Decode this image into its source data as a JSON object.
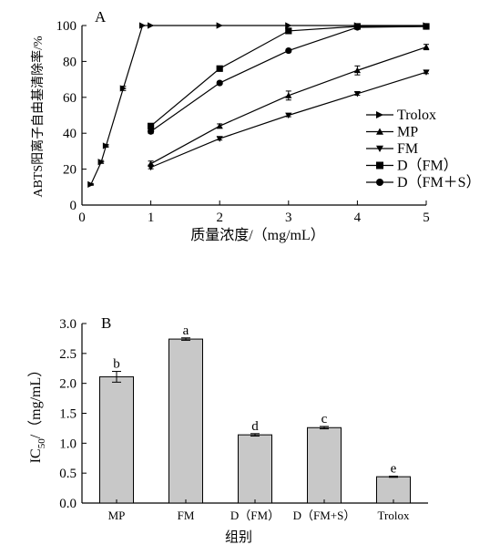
{
  "chart_data": [
    {
      "panel_label": "A",
      "type": "line",
      "xlabel": "质量浓度/（mg/mL）",
      "ylabel": "ABTS阳离子自由基清除率/%",
      "xlim": [
        0,
        5
      ],
      "ylim": [
        0,
        100
      ],
      "xticks": [
        "0",
        "1",
        "2",
        "3",
        "4",
        "5"
      ],
      "yticks": [
        "0",
        "20",
        "40",
        "60",
        "80",
        "100"
      ],
      "grid": false,
      "legend_position": "right",
      "series": [
        {
          "name": "Trolox",
          "marker": "triangle-right",
          "x": [
            0.13,
            0.28,
            0.35,
            0.6,
            0.88,
            1.0,
            2.0,
            3.0,
            4.0,
            5.0
          ],
          "y": [
            11.5,
            24,
            33,
            65,
            100,
            100,
            100,
            100,
            100,
            100
          ],
          "err": [
            0.5,
            0.8,
            0.8,
            1.2,
            0,
            0,
            0,
            0,
            0,
            0
          ]
        },
        {
          "name": "MP",
          "marker": "triangle-up",
          "x": [
            1,
            2,
            3,
            4,
            5
          ],
          "y": [
            23,
            44,
            61,
            75,
            88
          ],
          "err": [
            1.5,
            1.2,
            2.5,
            2.5,
            1.5
          ]
        },
        {
          "name": "FM",
          "marker": "triangle-down",
          "x": [
            1,
            2,
            3,
            4,
            5
          ],
          "y": [
            21,
            37,
            50,
            62,
            74
          ],
          "err": [
            0.8,
            0.8,
            0.8,
            0.8,
            0.8
          ]
        },
        {
          "name": "D（FM）",
          "marker": "square",
          "x": [
            1,
            2,
            3,
            4,
            5
          ],
          "y": [
            44,
            76,
            97,
            99.5,
            99.5
          ],
          "err": [
            1.2,
            0.8,
            1.0,
            0.5,
            0.5
          ]
        },
        {
          "name": "D（FM＋S）",
          "marker": "circle",
          "x": [
            1,
            2,
            3,
            4,
            5
          ],
          "y": [
            41,
            68,
            86,
            99,
            99.5
          ],
          "err": [
            1.2,
            0.8,
            0.8,
            0.5,
            0.5
          ]
        }
      ]
    },
    {
      "panel_label": "B",
      "type": "bar",
      "xlabel": "组别",
      "ylabel_main": "IC",
      "ylabel_sub": "50",
      "ylabel_rest": "/（mg/mL）",
      "ylim": [
        0,
        3.0
      ],
      "yticks": [
        "0.0",
        "0.5",
        "1.0",
        "1.5",
        "2.0",
        "2.5",
        "3.0"
      ],
      "bar_color": "#c8c8c8",
      "categories": [
        "MP",
        "FM",
        "D（FM）",
        "D（FM+S）",
        "Trolox"
      ],
      "values": [
        2.11,
        2.74,
        1.14,
        1.26,
        0.44
      ],
      "errors": [
        0.09,
        0.02,
        0.02,
        0.02,
        0.01
      ],
      "significance": [
        "b",
        "a",
        "d",
        "c",
        "e"
      ]
    }
  ]
}
